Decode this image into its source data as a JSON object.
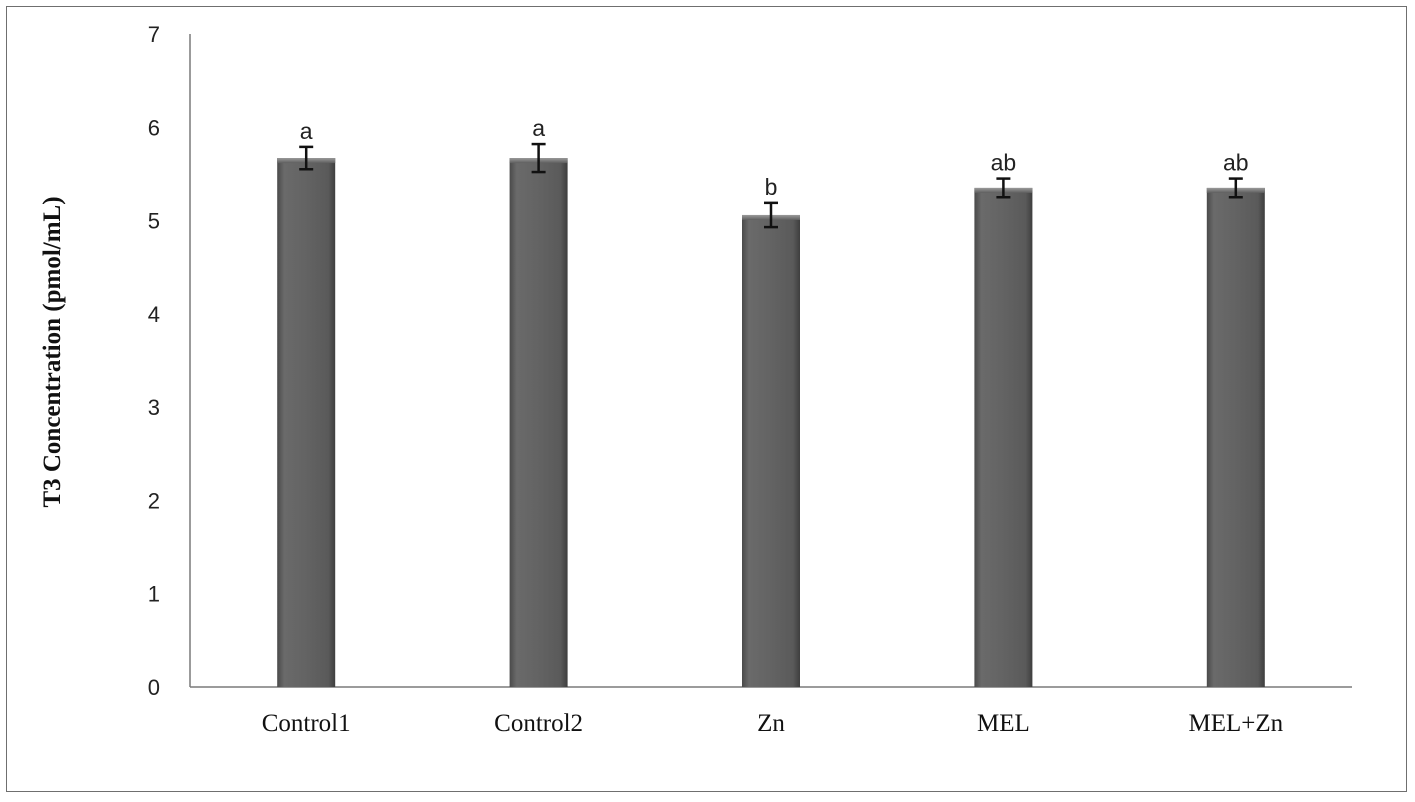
{
  "chart_data": {
    "type": "bar",
    "title": "",
    "xlabel": "",
    "ylabel": "T3 Concentration (pmol/mL)",
    "ylim": [
      0,
      7
    ],
    "yticks": [
      0,
      1,
      2,
      3,
      4,
      5,
      6,
      7
    ],
    "grid": false,
    "legend": "none",
    "categories": [
      "Control1",
      "Control2",
      "Zn",
      "MEL",
      "MEL+Zn"
    ],
    "series": [
      {
        "values": [
          5.67,
          5.67,
          5.06,
          5.35,
          5.35
        ],
        "error": [
          0.12,
          0.15,
          0.13,
          0.1,
          0.1
        ],
        "labels": [
          "a",
          "a",
          "b",
          "ab",
          "ab"
        ],
        "color": "#5e5e5e"
      }
    ]
  }
}
